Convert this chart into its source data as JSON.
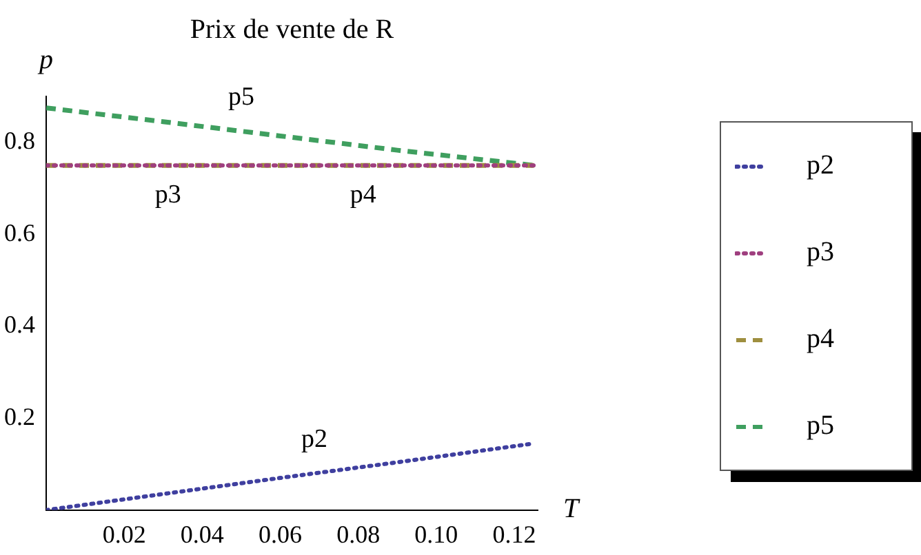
{
  "chart_data": {
    "type": "line",
    "title": "Prix de vente de R",
    "xlabel": "T",
    "ylabel": "p",
    "xlim": [
      0,
      0.126
    ],
    "xticks": [
      0.02,
      0.04,
      0.06,
      0.08,
      {
        "value": 0.1,
        "label": "0.10"
      },
      0.12
    ],
    "ylim": [
      0,
      0.9
    ],
    "yticks": [
      0.2,
      0.4,
      0.6,
      0.8
    ],
    "grid": false,
    "legend": "right",
    "marker": "none",
    "series": [
      {
        "name": "p2",
        "color": "#3f3f9f",
        "line_style": "dotted",
        "x": [
          0,
          0.03,
          0.06,
          0.09,
          0.125
        ],
        "values": [
          0,
          0.035,
          0.07,
          0.104,
          0.145
        ]
      },
      {
        "name": "p3",
        "color": "#9f3f7f",
        "line_style": "dotted",
        "x": [
          0,
          0.125
        ],
        "values": [
          0.75,
          0.75
        ]
      },
      {
        "name": "p4",
        "color": "#9f8f3f",
        "line_style": "dashed",
        "x": [
          0,
          0.125
        ],
        "values": [
          0.75,
          0.75
        ]
      },
      {
        "name": "p5",
        "color": "#3f9f5f",
        "line_style": "dashed",
        "x": [
          0,
          0.03,
          0.06,
          0.09,
          0.125
        ],
        "values": [
          0.875,
          0.845,
          0.814,
          0.783,
          0.75
        ]
      }
    ]
  }
}
